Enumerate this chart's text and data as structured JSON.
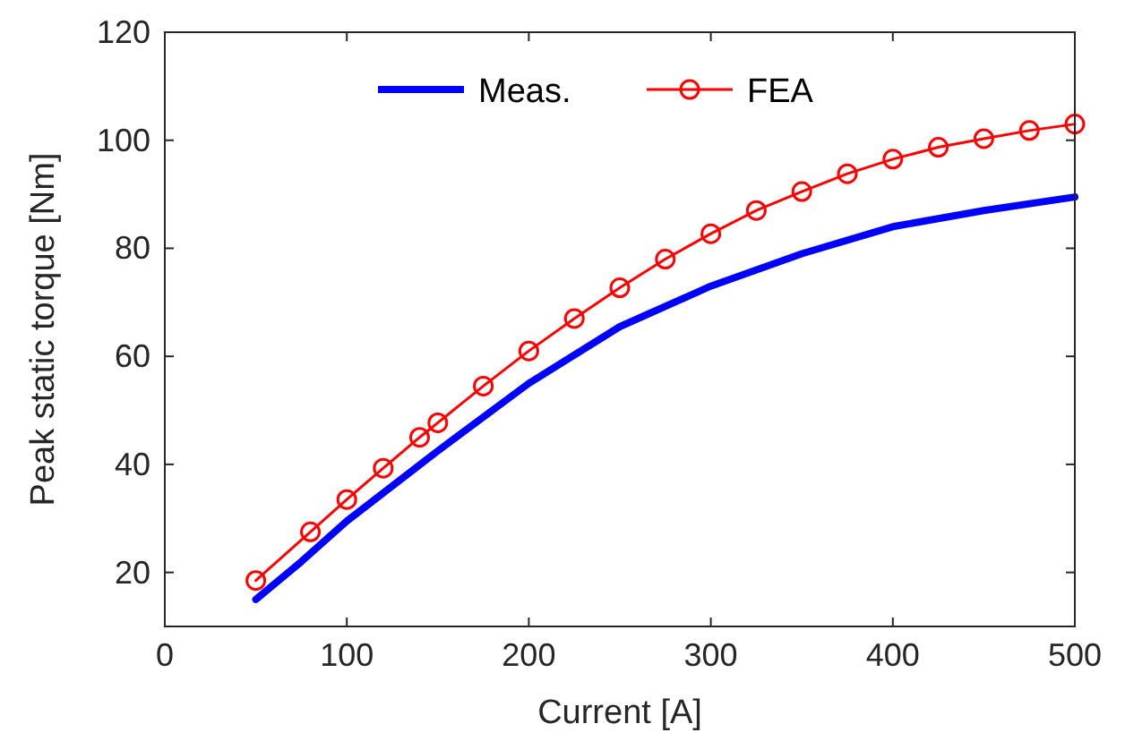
{
  "chart_data": {
    "type": "line",
    "xlabel": "Current [A]",
    "ylabel": "Peak static torque [Nm]",
    "xlim": [
      0,
      500
    ],
    "ylim": [
      10,
      120
    ],
    "xticks": [
      0,
      100,
      200,
      300,
      400,
      500
    ],
    "yticks": [
      20,
      40,
      60,
      80,
      100,
      120
    ],
    "grid": false,
    "legend": "top",
    "series": [
      {
        "name": "Meas.",
        "color": "#0000ff",
        "marker": "none",
        "x": [
          50,
          75,
          100,
          150,
          200,
          250,
          300,
          350,
          400,
          450,
          500
        ],
        "values": [
          15,
          22,
          29.5,
          42.5,
          55,
          65.5,
          73,
          79,
          84,
          87,
          89.5
        ]
      },
      {
        "name": "FEA",
        "color": "#ff0000",
        "marker": "circle",
        "x": [
          50,
          80,
          100,
          120,
          140,
          150,
          175,
          200,
          225,
          250,
          275,
          300,
          325,
          350,
          375,
          400,
          425,
          450,
          475,
          500
        ],
        "values": [
          18.5,
          27.5,
          33.5,
          39.3,
          45,
          47.7,
          54.5,
          61,
          67,
          72.7,
          78,
          82.7,
          87,
          90.5,
          93.8,
          96.5,
          98.7,
          100.3,
          101.8,
          103
        ]
      }
    ]
  }
}
